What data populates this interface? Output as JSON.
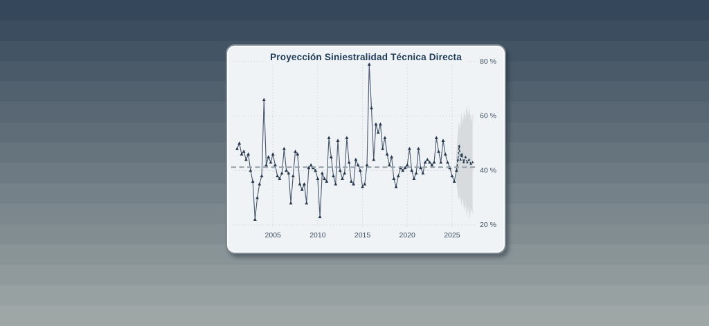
{
  "window": {
    "kind": "floating chart panel on desktop gradient background"
  },
  "colors": {
    "desktop_top": "#35475a",
    "desktop_bottom": "#9ea7a6",
    "panel_bg": "#f0f3f6",
    "panel_border": "#7d8a94",
    "title": "#1e3a56",
    "grid": "#c6ccd2",
    "tick_label": "#3d4e61",
    "series_line": "#4d5d72",
    "series_marker": "#24364c",
    "series_halo": "#ffffff",
    "mean_line": "#97a1ab",
    "forecast_line": "#2c3f56",
    "confidence_band": "#d5d9dc"
  },
  "chart_data": {
    "type": "line",
    "title": "Proyección Siniestralidad Técnica Directa",
    "xlabel": "",
    "ylabel": "",
    "x_range": [
      2000.5,
      2027.56
    ],
    "y_range": [
      20,
      80
    ],
    "grid": true,
    "legend": "none",
    "y_ticks": [
      {
        "value": 80,
        "label": "80 %"
      },
      {
        "value": 60,
        "label": "60 %"
      },
      {
        "value": 40,
        "label": "40 %"
      },
      {
        "value": 20,
        "label": "20 %"
      }
    ],
    "x_ticks": [
      {
        "value": 2005,
        "label": "2005"
      },
      {
        "value": 2010,
        "label": "2010"
      },
      {
        "value": 2015,
        "label": "2015"
      },
      {
        "value": 2020,
        "label": "2020"
      },
      {
        "value": 2025,
        "label": "2025"
      }
    ],
    "mean_reference_line": {
      "value": 41.2,
      "style": "dashed"
    },
    "series": [
      {
        "name": "historical-siniestralidad",
        "style": "solid line with triangle markers",
        "x": [
          2001.0,
          2001.25,
          2001.5,
          2001.75,
          2002.0,
          2002.25,
          2002.5,
          2002.75,
          2003.0,
          2003.25,
          2003.5,
          2003.75,
          2004.0,
          2004.25,
          2004.5,
          2004.75,
          2005.0,
          2005.25,
          2005.5,
          2005.75,
          2006.0,
          2006.25,
          2006.5,
          2006.75,
          2007.0,
          2007.25,
          2007.5,
          2007.75,
          2008.0,
          2008.25,
          2008.5,
          2008.75,
          2009.0,
          2009.25,
          2009.5,
          2009.75,
          2010.0,
          2010.25,
          2010.5,
          2010.75,
          2011.0,
          2011.25,
          2011.5,
          2011.75,
          2012.0,
          2012.25,
          2012.5,
          2012.75,
          2013.0,
          2013.25,
          2013.5,
          2013.75,
          2014.0,
          2014.25,
          2014.5,
          2014.75,
          2015.0,
          2015.25,
          2015.5,
          2015.75,
          2016.0,
          2016.25,
          2016.5,
          2016.75,
          2017.0,
          2017.25,
          2017.5,
          2017.75,
          2018.0,
          2018.25,
          2018.5,
          2018.75,
          2019.0,
          2019.25,
          2019.5,
          2019.75,
          2020.0,
          2020.25,
          2020.5,
          2020.75,
          2021.0,
          2021.25,
          2021.5,
          2021.75,
          2022.0,
          2022.25,
          2022.5,
          2022.75,
          2023.0,
          2023.25,
          2023.5,
          2023.75,
          2024.0,
          2024.25,
          2024.5,
          2024.75,
          2025.0,
          2025.25,
          2025.5
        ],
        "y": [
          48,
          50,
          46,
          47,
          44,
          46,
          40,
          36,
          22,
          30,
          35,
          38,
          66,
          42,
          45,
          43,
          46,
          42,
          38,
          37,
          39,
          48,
          40,
          39,
          28,
          38,
          47,
          46,
          35,
          33,
          35,
          28,
          41,
          42,
          41,
          40,
          37,
          23,
          39,
          37,
          36,
          52,
          45,
          38,
          35,
          51,
          40,
          37,
          39,
          52,
          43,
          36,
          35,
          44,
          42,
          40,
          34,
          35,
          42,
          79,
          63,
          44,
          57,
          54,
          57,
          48,
          52,
          46,
          42,
          45,
          37,
          34,
          38,
          41,
          40,
          41,
          42,
          48,
          40,
          37,
          39,
          48,
          41,
          39,
          43,
          44,
          43,
          42,
          43,
          52,
          47,
          43,
          51,
          46,
          43,
          41,
          38,
          36,
          40
        ]
      },
      {
        "name": "forecast-siniestralidad",
        "style": "dashed line with small triangle markers",
        "x": [
          2025.5,
          2025.65,
          2025.8,
          2025.95,
          2026.1,
          2026.3,
          2026.5,
          2026.7,
          2026.9,
          2027.1,
          2027.3
        ],
        "y": [
          40,
          44,
          49,
          44,
          46,
          43,
          45,
          43,
          44,
          42.5,
          43
        ]
      }
    ],
    "confidence_band": {
      "name": "forecast-confidence-band",
      "x": [
        2025.45,
        2025.6,
        2025.75,
        2025.9,
        2026.05,
        2026.2,
        2026.35,
        2026.5,
        2026.65,
        2026.8,
        2026.95,
        2027.1,
        2027.3
      ],
      "upper": [
        44,
        52,
        58,
        55,
        61,
        57,
        62,
        59,
        64,
        60,
        63,
        58,
        61
      ],
      "lower": [
        37,
        33,
        29,
        31,
        27,
        30,
        25,
        28,
        23,
        27,
        22,
        26,
        24
      ]
    }
  }
}
